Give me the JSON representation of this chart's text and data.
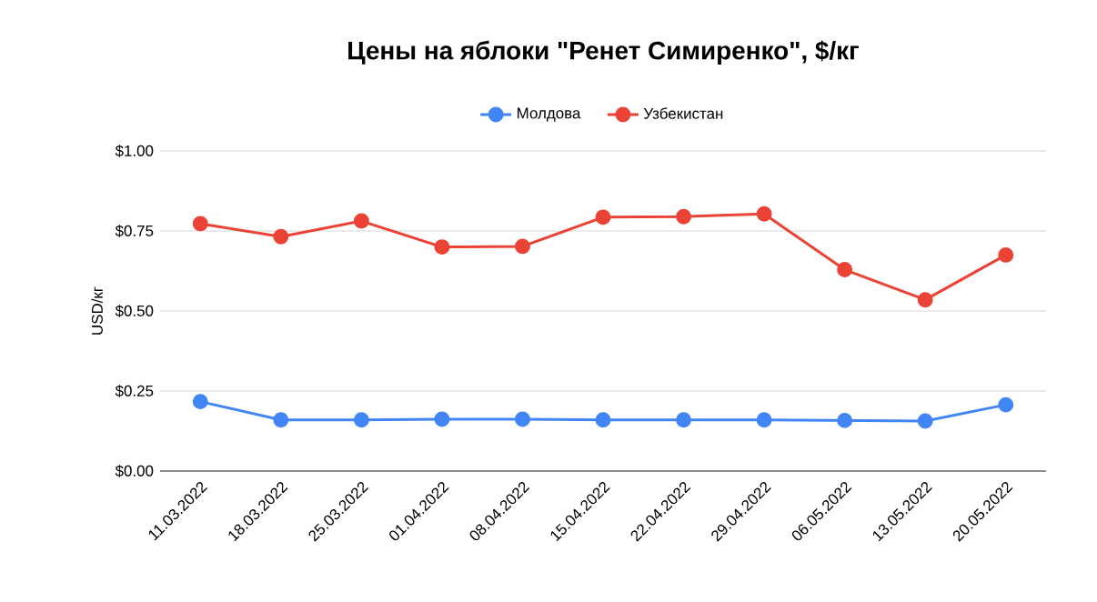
{
  "chart_data": {
    "type": "line",
    "title": "Цены на яблоки \"Ренет Симиренко\", $/кг",
    "ylabel": "USD/кг",
    "categories": [
      "11.03.2022",
      "18.03.2022",
      "25.03.2022",
      "01.04.2022",
      "08.04.2022",
      "15.04.2022",
      "22.04.2022",
      "29.04.2022",
      "06.05.2022",
      "13.05.2022",
      "20.05.2022"
    ],
    "series": [
      {
        "name": "Молдова",
        "color": "#4285f4",
        "values": [
          0.217,
          0.16,
          0.16,
          0.162,
          0.162,
          0.16,
          0.16,
          0.16,
          0.158,
          0.156,
          0.207
        ]
      },
      {
        "name": "Узбекистан",
        "color": "#ea4335",
        "values": [
          0.773,
          0.732,
          0.781,
          0.7,
          0.702,
          0.793,
          0.795,
          0.803,
          0.629,
          0.535,
          0.675
        ]
      }
    ],
    "ylim": [
      0,
      1
    ],
    "yticks": [
      {
        "value": 0,
        "label": "$0.00"
      },
      {
        "value": 0.25,
        "label": "$0.25"
      },
      {
        "value": 0.5,
        "label": "$0.50"
      },
      {
        "value": 0.75,
        "label": "$0.75"
      },
      {
        "value": 1,
        "label": "$1.00"
      }
    ],
    "grid": "y",
    "legend": "top",
    "marker": "circle",
    "line_style": "solid"
  }
}
